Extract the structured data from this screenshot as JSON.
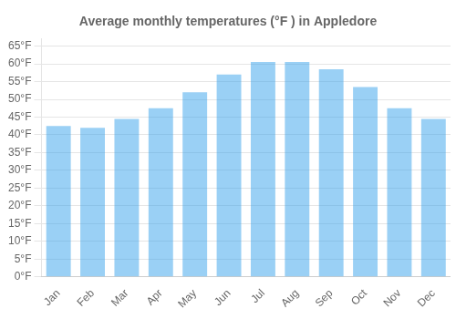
{
  "chart_data": {
    "type": "bar",
    "title": "Average monthly temperatures (°F ) in Appledore",
    "categories": [
      "Jan",
      "Feb",
      "Mar",
      "Apr",
      "May",
      "Jun",
      "Jul",
      "Aug",
      "Sep",
      "Oct",
      "Nov",
      "Dec"
    ],
    "values": [
      42.5,
      42.0,
      44.5,
      47.5,
      52.0,
      57.0,
      60.5,
      60.5,
      58.5,
      53.5,
      47.5,
      44.5
    ],
    "ylim": [
      0,
      67
    ],
    "yticks": [
      {
        "value": 0,
        "label": "0°F"
      },
      {
        "value": 5,
        "label": "5°F"
      },
      {
        "value": 10,
        "label": "10°F"
      },
      {
        "value": 15,
        "label": "15°F"
      },
      {
        "value": 20,
        "label": "20°F"
      },
      {
        "value": 25,
        "label": "25°F"
      },
      {
        "value": 30,
        "label": "30°F"
      },
      {
        "value": 35,
        "label": "35°F"
      },
      {
        "value": 40,
        "label": "40°F"
      },
      {
        "value": 45,
        "label": "45°F"
      },
      {
        "value": 50,
        "label": "50°F"
      },
      {
        "value": 55,
        "label": "55°F"
      },
      {
        "value": 60,
        "label": "60°F"
      },
      {
        "value": 65,
        "label": "65°F"
      }
    ],
    "grid": true
  }
}
